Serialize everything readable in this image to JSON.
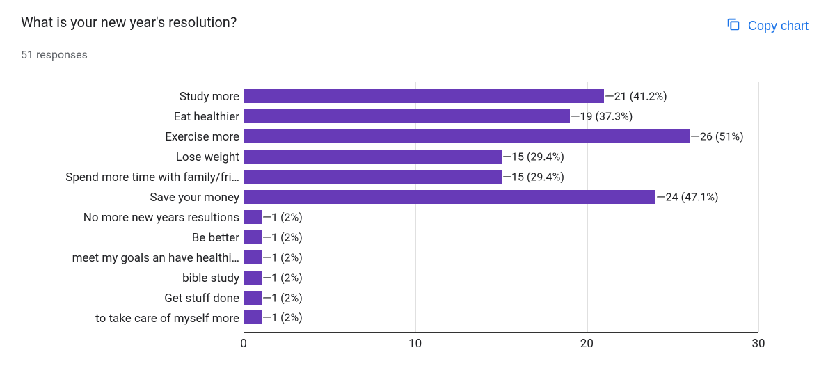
{
  "header": {
    "title": "What is your new year's resolution?",
    "subtitle": "51 responses",
    "copy_label": "Copy chart"
  },
  "chart": {
    "type": "bar",
    "orientation": "horizontal",
    "bar_color": "#673ab7",
    "grid_color": "#e0e0e0",
    "axis_color": "#333333",
    "text_color": "#202124",
    "background_color": "#ffffff",
    "label_fontsize": 17,
    "value_fontsize": 16,
    "xlim": [
      0,
      30
    ],
    "xtick_step": 10,
    "xticks": [
      0,
      10,
      20,
      30
    ],
    "categories": [
      "Study more",
      "Eat healthier",
      "Exercise more",
      "Lose weight",
      "Spend more time with family/fri…",
      "Save your money",
      "No more new years resultions",
      "Be better",
      "meet my goals an have healthi…",
      "bible study",
      "Get stuff done",
      "to take care of myself more"
    ],
    "values": [
      21,
      19,
      26,
      15,
      15,
      24,
      1,
      1,
      1,
      1,
      1,
      1
    ],
    "value_labels": [
      "21 (41.2%)",
      "19 (37.3%)",
      "26 (51%)",
      "15 (29.4%)",
      "15 (29.4%)",
      "24 (47.1%)",
      "1 (2%)",
      "1 (2%)",
      "1 (2%)",
      "1 (2%)",
      "1 (2%)",
      "1 (2%)"
    ]
  }
}
